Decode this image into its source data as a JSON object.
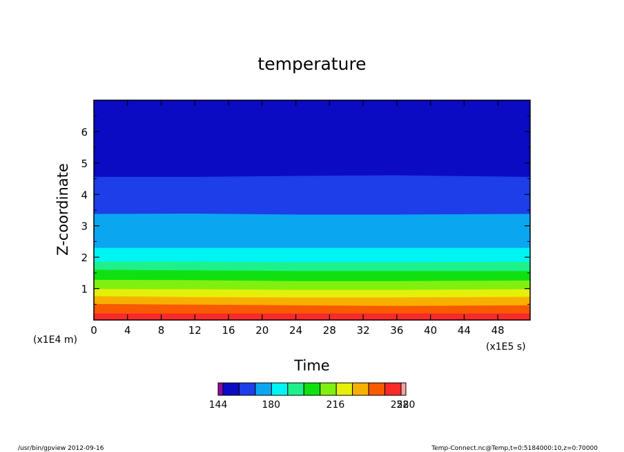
{
  "chart_data": {
    "type": "heatmap",
    "title": "temperature",
    "xlabel": "Time",
    "ylabel": "Z-coordinate",
    "x_unit": "(x1E5 s)",
    "y_unit": "(x1E4 m)",
    "xlim": [
      0,
      51.84
    ],
    "ylim": [
      0,
      7.0
    ],
    "x_ticks": [
      0,
      4,
      8,
      12,
      16,
      20,
      24,
      28,
      32,
      36,
      40,
      44,
      48
    ],
    "x_tick_labels": [
      "0",
      "4",
      "8",
      "12",
      "16",
      "20",
      "24",
      "28",
      "32",
      "36",
      "40",
      "44",
      "48"
    ],
    "y_ticks": [
      1,
      2,
      3,
      4,
      5,
      6
    ],
    "y_tick_labels": [
      "1",
      "2",
      "3",
      "4",
      "5",
      "6"
    ],
    "contour_levels": [
      144,
      153.07,
      162.13,
      171.2,
      180.27,
      189.33,
      198.4,
      207.47,
      216.53,
      225.6,
      234.67,
      243.73,
      252.8,
      261.87,
      270.93,
      280
    ],
    "colorbar": {
      "colors": [
        "#8a0ca8",
        "#0b0bc4",
        "#1d3ee8",
        "#0ba6f0",
        "#00f4f4",
        "#1ef08c",
        "#10e010",
        "#80f010",
        "#e4f00a",
        "#f8b000",
        "#f85a00",
        "#f82a2a",
        "#f8a0a0"
      ],
      "tick_labels": [
        "144",
        "180",
        "216",
        "252",
        "280"
      ],
      "tick_values": [
        144,
        180,
        216,
        252,
        280
      ]
    },
    "bands": [
      {
        "color": "#0b0bc4",
        "z_bottom": [
          4.55,
          4.55,
          4.58,
          4.6,
          4.55
        ],
        "z_top": [
          7.0,
          7.0,
          7.0,
          7.0,
          7.0
        ]
      },
      {
        "color": "#1d3ee8",
        "z_bottom": [
          3.37,
          3.38,
          3.35,
          3.35,
          3.37
        ],
        "z_top": [
          4.55,
          4.55,
          4.58,
          4.6,
          4.55
        ]
      },
      {
        "color": "#0ba6f0",
        "z_bottom": [
          2.29,
          2.29,
          2.29,
          2.29,
          2.29
        ],
        "z_top": [
          3.37,
          3.38,
          3.35,
          3.35,
          3.37
        ]
      },
      {
        "color": "#00f4f4",
        "z_bottom": [
          1.85,
          1.85,
          1.83,
          1.83,
          1.85
        ],
        "z_top": [
          2.29,
          2.29,
          2.29,
          2.29,
          2.29
        ]
      },
      {
        "color": "#1ef08c",
        "z_bottom": [
          1.59,
          1.57,
          1.55,
          1.55,
          1.55
        ],
        "z_top": [
          1.85,
          1.85,
          1.83,
          1.83,
          1.85
        ]
      },
      {
        "color": "#10e010",
        "z_bottom": [
          1.27,
          1.26,
          1.23,
          1.23,
          1.25
        ],
        "z_top": [
          1.59,
          1.57,
          1.55,
          1.55,
          1.55
        ]
      },
      {
        "color": "#80f010",
        "z_bottom": [
          0.98,
          0.97,
          0.95,
          0.95,
          0.97
        ],
        "z_top": [
          1.27,
          1.26,
          1.23,
          1.23,
          1.25
        ]
      },
      {
        "color": "#e4f00a",
        "z_bottom": [
          0.75,
          0.72,
          0.71,
          0.71,
          0.73
        ],
        "z_top": [
          0.98,
          0.97,
          0.95,
          0.95,
          0.97
        ]
      },
      {
        "color": "#f8b000",
        "z_bottom": [
          0.5,
          0.48,
          0.46,
          0.44,
          0.46
        ],
        "z_top": [
          0.75,
          0.72,
          0.71,
          0.71,
          0.73
        ]
      },
      {
        "color": "#f85a00",
        "z_bottom": [
          0.2,
          0.2,
          0.2,
          0.2,
          0.2
        ],
        "z_top": [
          0.5,
          0.48,
          0.46,
          0.44,
          0.46
        ]
      },
      {
        "color": "#f82a2a",
        "z_bottom": [
          0.0,
          0.0,
          0.0,
          0.0,
          0.0
        ],
        "z_top": [
          0.2,
          0.2,
          0.2,
          0.2,
          0.2
        ]
      }
    ],
    "band_x": [
      0,
      12,
      24,
      36,
      51.84
    ]
  },
  "footer": {
    "left": "/usr/bin/gpview  2012-09-16",
    "right": "Temp-Connect.nc@Temp,t=0:5184000:10,z=0:70000"
  }
}
